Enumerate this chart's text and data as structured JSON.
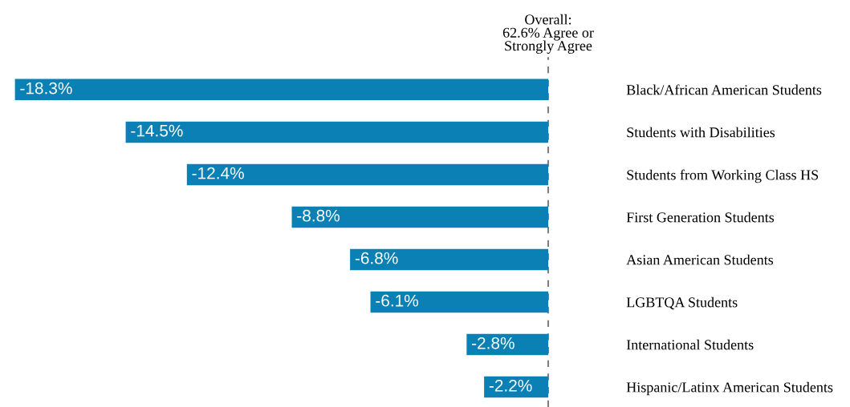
{
  "chart_data": {
    "type": "bar",
    "orientation": "horizontal",
    "categories": [
      "Black/African American Students",
      "Students with Disabilities",
      "Students from Working Class HS",
      "First Generation Students",
      "Asian American Students",
      "LGBTQA Students",
      "International Students",
      "Hispanic/Latinx American Students"
    ],
    "values": [
      -18.3,
      -14.5,
      -12.4,
      -8.8,
      -6.8,
      -6.1,
      -2.8,
      -2.2
    ],
    "value_labels": [
      "-18.3%",
      "-14.5%",
      "-12.4%",
      "-8.8%",
      "-6.8%",
      "-6.1%",
      "-2.8%",
      "-2.2%"
    ],
    "color": "#0a80b4",
    "annotations": [
      "Overall:\n62.6% Agree or\nStrongly Agree"
    ],
    "tick_labels": "y",
    "grid": false,
    "legend": false,
    "ref_lines": [
      {
        "axis": "x",
        "value": 0,
        "color": "#7f7f7f",
        "line_style": "dashed"
      }
    ]
  }
}
